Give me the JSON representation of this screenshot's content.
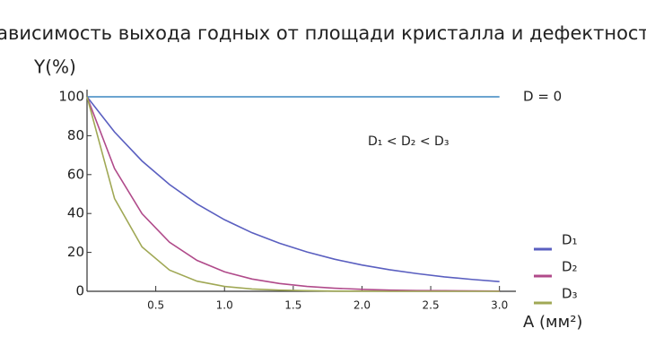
{
  "chart_data": {
    "type": "line",
    "title": "Зависимость выхода годных от площади кристалла и дефектности",
    "y_label": "Y(%)",
    "x_label": "A (мм²)",
    "annotation": "D₁ < D₂ < D₃",
    "x": [
      0,
      0.2,
      0.4,
      0.6,
      0.8,
      1.0,
      1.2,
      1.4,
      1.6,
      1.8,
      2.0,
      2.2,
      2.4,
      2.6,
      2.8,
      3.0
    ],
    "series": [
      {
        "name": "D = 0",
        "color": "#3a86c0",
        "values": [
          100,
          100,
          100,
          100,
          100,
          100,
          100,
          100,
          100,
          100,
          100,
          100,
          100,
          100,
          100,
          100
        ]
      },
      {
        "name": "D₁",
        "color": "#5a5fc0",
        "values": [
          100,
          81.9,
          67.0,
          54.9,
          44.9,
          36.8,
          30.1,
          24.7,
          20.2,
          16.5,
          13.5,
          11.1,
          9.1,
          7.4,
          6.1,
          5.0
        ]
      },
      {
        "name": "D₂",
        "color": "#b04a8a",
        "values": [
          100,
          63.1,
          39.9,
          25.2,
          15.9,
          10.0,
          6.3,
          4.0,
          2.5,
          1.6,
          1.0,
          0.6,
          0.4,
          0.3,
          0.2,
          0.1
        ]
      },
      {
        "name": "D₃",
        "color": "#a0a855",
        "values": [
          100,
          47.7,
          22.8,
          10.9,
          5.2,
          2.5,
          1.2,
          0.6,
          0.3,
          0.1,
          0.1,
          0,
          0,
          0,
          0,
          0
        ]
      }
    ],
    "xlim": [
      0,
      3.1
    ],
    "ylim": [
      0,
      100
    ],
    "xticks": [
      0.5,
      {
        "value": 1,
        "label": "1.0"
      },
      1.5,
      {
        "value": 2,
        "label": "2.0"
      },
      2.5,
      {
        "value": 3,
        "label": "3.0"
      }
    ],
    "yticks": [
      0,
      20,
      40,
      60,
      80,
      100
    ],
    "legend": "right"
  }
}
